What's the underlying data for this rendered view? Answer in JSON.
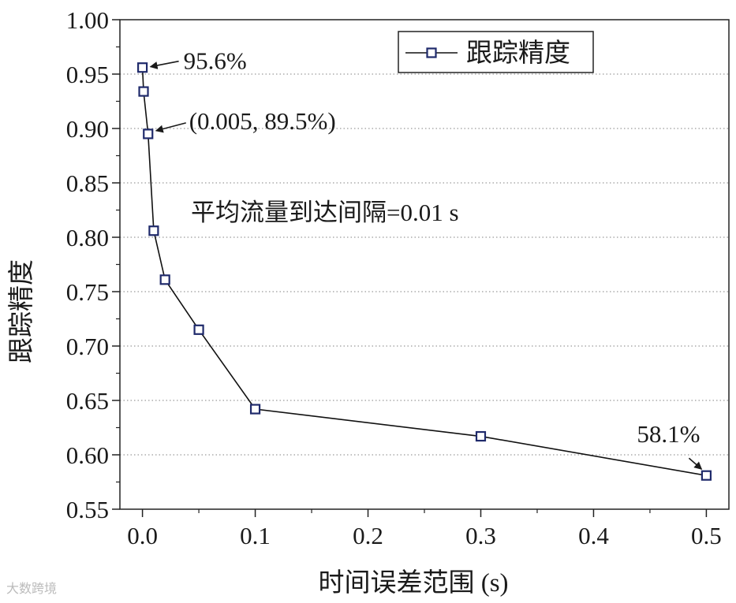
{
  "chart_data": {
    "type": "line",
    "xlabel": "时间误差范围 (s)",
    "ylabel": "跟踪精度",
    "xlim": [
      -0.02,
      0.52
    ],
    "ylim": [
      0.55,
      1.0
    ],
    "x_ticks": [
      "0.0",
      "0.1",
      "0.2",
      "0.3",
      "0.4",
      "0.5"
    ],
    "x_tick_values": [
      0.0,
      0.1,
      0.2,
      0.3,
      0.4,
      0.5
    ],
    "y_ticks": [
      "0.55",
      "0.60",
      "0.65",
      "0.70",
      "0.75",
      "0.80",
      "0.85",
      "0.90",
      "0.95",
      "1.00"
    ],
    "y_tick_values": [
      0.55,
      0.6,
      0.65,
      0.7,
      0.75,
      0.8,
      0.85,
      0.9,
      0.95,
      1.0
    ],
    "grid": "horizontal dotted",
    "legend_position": "top-right",
    "series": [
      {
        "name": "跟踪精度",
        "marker": "square-open",
        "color": "#1f2a6b",
        "line_color": "#111111",
        "x": [
          0.0,
          0.001,
          0.005,
          0.01,
          0.02,
          0.05,
          0.1,
          0.3,
          0.5
        ],
        "y": [
          0.956,
          0.934,
          0.895,
          0.806,
          0.761,
          0.715,
          0.642,
          0.617,
          0.581
        ]
      }
    ],
    "annotations": [
      {
        "text": "95.6%",
        "x": 0.0,
        "y": 0.956
      },
      {
        "text": "(0.005, 89.5%)",
        "x": 0.005,
        "y": 0.895
      },
      {
        "text": "58.1%",
        "x": 0.5,
        "y": 0.581
      }
    ],
    "note": "平均流量到达间隔=0.01 s"
  },
  "watermark": "大数跨境"
}
